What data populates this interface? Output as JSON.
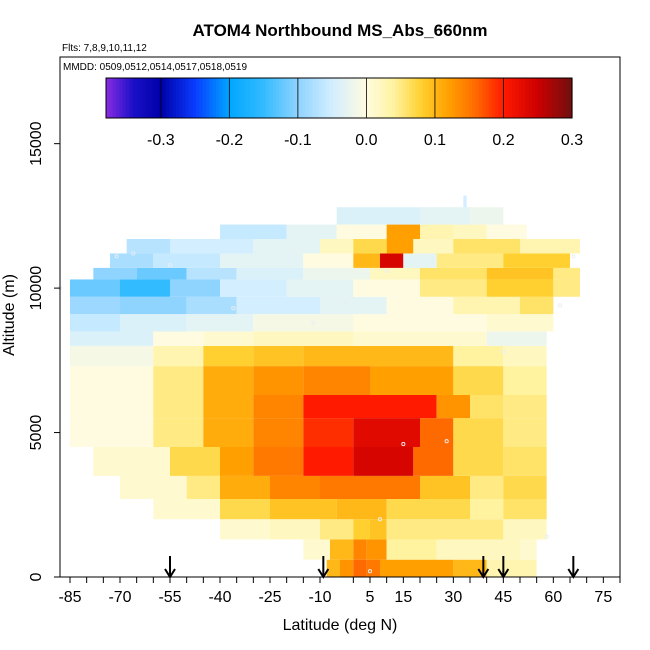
{
  "chart_data": {
    "type": "heatmap",
    "title": "ATOM4 Northbound MS_Abs_660nm",
    "flights_note": "Flts: 7,8,9,10,11,12",
    "mmdd_note": "MMDD: 0509,0512,0514,0517,0518,0519",
    "xlabel": "Latitude (deg N)",
    "ylabel": "Altitude (m)",
    "xlim": [
      -88,
      80
    ],
    "ylim": [
      0,
      18000
    ],
    "x_ticks": [
      -85,
      -70,
      -55,
      -40,
      -25,
      -10,
      5,
      15,
      30,
      45,
      60,
      75
    ],
    "x_minor_ticks": [
      -80,
      -75,
      -65,
      -60,
      -50,
      -45,
      -35,
      -30,
      -20,
      -15,
      0,
      10,
      20,
      25,
      35,
      40,
      50,
      55,
      65,
      70,
      80
    ],
    "x_tick_labels": [
      "-85",
      "-70",
      "-55",
      "-40",
      "-25",
      "-10",
      "5",
      "15",
      "30",
      "45",
      "60",
      "75"
    ],
    "y_ticks": [
      0,
      5000,
      10000,
      15000
    ],
    "y_tick_labels": [
      "0",
      "5000",
      "10000",
      "15000"
    ],
    "colorbar": {
      "range": [
        -0.38,
        0.3
      ],
      "ticks": [
        -0.3,
        -0.2,
        -0.1,
        0.0,
        0.1,
        0.2,
        0.3
      ],
      "tick_labels": [
        "-0.3",
        "-0.2",
        "-0.1",
        "0.0",
        "0.1",
        "0.2",
        "0.3"
      ],
      "stops": [
        {
          "v": -0.38,
          "c": "#8a2be2"
        },
        {
          "v": -0.34,
          "c": "#1a10c8"
        },
        {
          "v": -0.3,
          "c": "#0000a8"
        },
        {
          "v": -0.25,
          "c": "#0a3cff"
        },
        {
          "v": -0.2,
          "c": "#00a6ff"
        },
        {
          "v": -0.15,
          "c": "#33bbff"
        },
        {
          "v": -0.1,
          "c": "#8fd3ff"
        },
        {
          "v": -0.05,
          "c": "#d2eeff"
        },
        {
          "v": 0.0,
          "c": "#fffbe0"
        },
        {
          "v": 0.04,
          "c": "#fff3a0"
        },
        {
          "v": 0.08,
          "c": "#ffd030"
        },
        {
          "v": 0.12,
          "c": "#ffa000"
        },
        {
          "v": 0.16,
          "c": "#ff6a00"
        },
        {
          "v": 0.2,
          "c": "#ff1a00"
        },
        {
          "v": 0.25,
          "c": "#cc0000"
        },
        {
          "v": 0.3,
          "c": "#701010"
        }
      ]
    },
    "bands": [
      {
        "y0": 0,
        "y1": 600,
        "cells": [
          [
            -8,
            -4,
            0.1
          ],
          [
            -4,
            0,
            0.13
          ],
          [
            0,
            4,
            0.16
          ],
          [
            4,
            8,
            0.15
          ],
          [
            8,
            30,
            0.12
          ],
          [
            30,
            40,
            0.1
          ],
          [
            40,
            55,
            0.03
          ]
        ]
      },
      {
        "y0": 600,
        "y1": 1300,
        "cells": [
          [
            -15,
            -7,
            0.01
          ],
          [
            -7,
            0,
            0.1
          ],
          [
            0,
            4,
            0.14
          ],
          [
            4,
            10,
            0.13
          ],
          [
            10,
            25,
            0.04
          ],
          [
            25,
            50,
            0.02
          ],
          [
            50,
            55,
            0.01
          ]
        ]
      },
      {
        "y0": 1300,
        "y1": 2000,
        "cells": [
          [
            -40,
            -25,
            0.01
          ],
          [
            -25,
            -10,
            0.02
          ],
          [
            -10,
            0,
            0.05
          ],
          [
            0,
            5,
            0.08
          ],
          [
            5,
            10,
            0.09
          ],
          [
            10,
            45,
            0.05
          ],
          [
            45,
            58,
            0.02
          ]
        ]
      },
      {
        "y0": 2000,
        "y1": 2700,
        "cells": [
          [
            -60,
            -40,
            0.01
          ],
          [
            -40,
            -25,
            0.07
          ],
          [
            -25,
            -5,
            0.09
          ],
          [
            -5,
            10,
            0.1
          ],
          [
            10,
            35,
            0.07
          ],
          [
            35,
            45,
            0.04
          ],
          [
            45,
            58,
            0.06
          ]
        ]
      },
      {
        "y0": 2700,
        "y1": 3500,
        "cells": [
          [
            -70,
            -50,
            0.01
          ],
          [
            -50,
            -40,
            0.05
          ],
          [
            -40,
            -25,
            0.11
          ],
          [
            -25,
            -10,
            0.14
          ],
          [
            -10,
            20,
            0.15
          ],
          [
            20,
            35,
            0.09
          ],
          [
            35,
            45,
            0.05
          ],
          [
            45,
            58,
            0.07
          ]
        ]
      },
      {
        "y0": 3500,
        "y1": 4500,
        "cells": [
          [
            -78,
            -55,
            0.01
          ],
          [
            -55,
            -40,
            0.07
          ],
          [
            -40,
            -30,
            0.12
          ],
          [
            -30,
            -15,
            0.15
          ],
          [
            -15,
            0,
            0.2
          ],
          [
            0,
            18,
            0.24
          ],
          [
            18,
            30,
            0.16
          ],
          [
            30,
            45,
            0.07
          ],
          [
            45,
            58,
            0.06
          ]
        ]
      },
      {
        "y0": 4500,
        "y1": 5500,
        "cells": [
          [
            -85,
            -60,
            0.0
          ],
          [
            -60,
            -45,
            0.05
          ],
          [
            -45,
            -30,
            0.11
          ],
          [
            -30,
            -15,
            0.14
          ],
          [
            -15,
            0,
            0.19
          ],
          [
            0,
            20,
            0.23
          ],
          [
            20,
            30,
            0.16
          ],
          [
            30,
            45,
            0.07
          ],
          [
            45,
            58,
            0.05
          ]
        ]
      },
      {
        "y0": 5500,
        "y1": 6300,
        "cells": [
          [
            -85,
            -60,
            0.0
          ],
          [
            -60,
            -45,
            0.05
          ],
          [
            -45,
            -30,
            0.11
          ],
          [
            -30,
            -15,
            0.14
          ],
          [
            -15,
            25,
            0.2
          ],
          [
            25,
            35,
            0.13
          ],
          [
            35,
            45,
            0.06
          ],
          [
            45,
            58,
            0.05
          ]
        ]
      },
      {
        "y0": 6300,
        "y1": 7300,
        "cells": [
          [
            -85,
            -60,
            0.0
          ],
          [
            -60,
            -45,
            0.05
          ],
          [
            -45,
            -30,
            0.11
          ],
          [
            -30,
            -15,
            0.13
          ],
          [
            -15,
            5,
            0.14
          ],
          [
            5,
            30,
            0.12
          ],
          [
            30,
            45,
            0.07
          ],
          [
            45,
            58,
            0.04
          ]
        ]
      },
      {
        "y0": 7300,
        "y1": 8000,
        "cells": [
          [
            -85,
            -60,
            -0.01
          ],
          [
            -60,
            -45,
            0.03
          ],
          [
            -45,
            -30,
            0.08
          ],
          [
            -30,
            -15,
            0.09
          ],
          [
            -15,
            5,
            0.1
          ],
          [
            5,
            30,
            0.1
          ],
          [
            30,
            45,
            0.04
          ],
          [
            45,
            58,
            0.02
          ]
        ]
      },
      {
        "y0": 8000,
        "y1": 8500,
        "cells": [
          [
            -85,
            -60,
            -0.04
          ],
          [
            -60,
            -45,
            0.0
          ],
          [
            -45,
            -30,
            0.01
          ],
          [
            -30,
            0,
            0.02
          ],
          [
            0,
            40,
            0.01
          ],
          [
            40,
            58,
            -0.02
          ]
        ]
      },
      {
        "y0": 8500,
        "y1": 9100,
        "cells": [
          [
            -85,
            -70,
            -0.06
          ],
          [
            -70,
            -50,
            -0.04
          ],
          [
            -50,
            -30,
            -0.03
          ],
          [
            -30,
            0,
            -0.01
          ],
          [
            0,
            40,
            0.0
          ],
          [
            40,
            60,
            0.01
          ]
        ]
      },
      {
        "y0": 9100,
        "y1": 9700,
        "cells": [
          [
            -85,
            -70,
            -0.09
          ],
          [
            -70,
            -50,
            -0.1
          ],
          [
            -50,
            -35,
            -0.08
          ],
          [
            -35,
            -10,
            -0.05
          ],
          [
            -10,
            10,
            -0.03
          ],
          [
            10,
            30,
            0.0
          ],
          [
            30,
            50,
            0.03
          ],
          [
            50,
            60,
            0.06
          ]
        ]
      },
      {
        "y0": 9700,
        "y1": 10300,
        "cells": [
          [
            -85,
            -70,
            -0.12
          ],
          [
            -70,
            -55,
            -0.15
          ],
          [
            -55,
            -40,
            -0.1
          ],
          [
            -40,
            -20,
            -0.05
          ],
          [
            -20,
            0,
            -0.03
          ],
          [
            0,
            20,
            0.0
          ],
          [
            20,
            40,
            0.05
          ],
          [
            40,
            60,
            0.08
          ],
          [
            60,
            68,
            0.05
          ]
        ]
      },
      {
        "y0": 10300,
        "y1": 10700,
        "cells": [
          [
            -78,
            -65,
            -0.1
          ],
          [
            -65,
            -50,
            -0.12
          ],
          [
            -50,
            -35,
            -0.07
          ],
          [
            -35,
            -15,
            -0.04
          ],
          [
            -15,
            5,
            -0.02
          ],
          [
            5,
            20,
            0.02
          ],
          [
            20,
            40,
            0.06
          ],
          [
            40,
            60,
            0.09
          ],
          [
            60,
            68,
            0.05
          ]
        ]
      },
      {
        "y0": 10700,
        "y1": 11200,
        "cells": [
          [
            -73,
            -60,
            -0.08
          ],
          [
            -60,
            -40,
            -0.06
          ],
          [
            -40,
            -15,
            -0.03
          ],
          [
            -15,
            0,
            0.0
          ],
          [
            0,
            8,
            0.1
          ],
          [
            8,
            15,
            0.24
          ],
          [
            15,
            25,
            -0.03
          ],
          [
            25,
            45,
            0.05
          ],
          [
            45,
            65,
            0.08
          ]
        ]
      },
      {
        "y0": 11200,
        "y1": 11700,
        "cells": [
          [
            -68,
            -55,
            -0.07
          ],
          [
            -55,
            -30,
            -0.05
          ],
          [
            -30,
            -10,
            -0.03
          ],
          [
            -10,
            0,
            0.02
          ],
          [
            0,
            10,
            0.07
          ],
          [
            10,
            18,
            0.12
          ],
          [
            18,
            30,
            0.02
          ],
          [
            30,
            50,
            0.06
          ],
          [
            50,
            68,
            0.03
          ]
        ]
      },
      {
        "y0": 11700,
        "y1": 12200,
        "cells": [
          [
            -40,
            -20,
            -0.06
          ],
          [
            -20,
            -5,
            -0.03
          ],
          [
            -5,
            10,
            0.0
          ],
          [
            10,
            20,
            0.12
          ],
          [
            20,
            30,
            0.03
          ],
          [
            30,
            40,
            0.02
          ],
          [
            40,
            52,
            0.0
          ]
        ]
      },
      {
        "y0": 12200,
        "y1": 12800,
        "cells": [
          [
            -5,
            20,
            -0.04
          ],
          [
            20,
            35,
            -0.03
          ],
          [
            35,
            45,
            -0.02
          ]
        ]
      },
      {
        "y0": 12800,
        "y1": 13200,
        "cells": [
          [
            33,
            34,
            -0.05
          ]
        ]
      }
    ],
    "sample_points": [
      [
        -71,
        11100
      ],
      [
        -66,
        11200
      ],
      [
        -55,
        10800
      ],
      [
        -36,
        9300
      ],
      [
        -12,
        8800
      ],
      [
        -2,
        9500
      ],
      [
        15,
        4600
      ],
      [
        28,
        4700
      ],
      [
        45,
        7800
      ],
      [
        8,
        2000
      ],
      [
        5,
        200
      ],
      [
        58,
        1400
      ],
      [
        62,
        9400
      ],
      [
        66,
        11100
      ],
      [
        -88,
        10000
      ],
      [
        10,
        10600
      ]
    ],
    "arrows": [
      -55,
      -9,
      39,
      45,
      66
    ]
  }
}
